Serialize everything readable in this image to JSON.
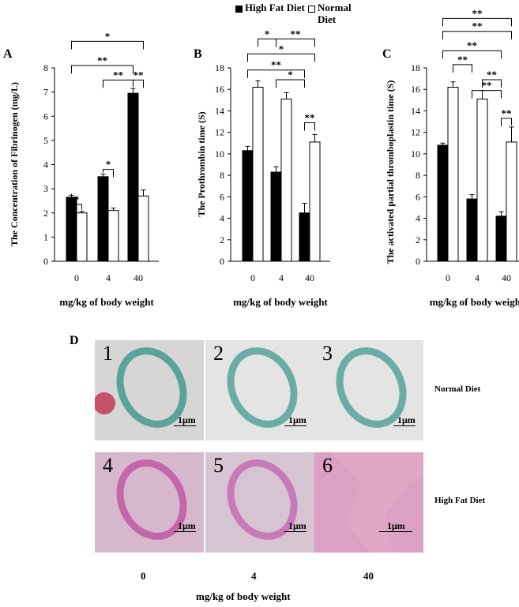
{
  "legend": {
    "high_fat_label": "High Fat Diet",
    "normal_label": "Normal Diet",
    "high_fat_color": "#000000",
    "normal_color": "#ffffff"
  },
  "chart_data": [
    {
      "panel": "A",
      "type": "bar",
      "ylabel": "The Concentration of Fibrinogen (mg/L)",
      "xlabel": "mg/kg of body weight",
      "categories": [
        "0",
        "4",
        "40"
      ],
      "series": [
        {
          "name": "High Fat Diet",
          "values": [
            2.65,
            3.5,
            6.95
          ],
          "errors": [
            0.08,
            0.1,
            0.2
          ]
        },
        {
          "name": "Normal Diet",
          "values": [
            2.0,
            2.1,
            2.7
          ],
          "errors": [
            0.07,
            0.1,
            0.25
          ]
        }
      ],
      "ylim": [
        0,
        8
      ],
      "yticks": [
        "0",
        "1",
        "2",
        "3",
        "4",
        "5",
        "6",
        "7",
        "8"
      ],
      "significance": [
        {
          "label": "*",
          "from": [
            0,
            0
          ],
          "to": [
            0,
            1
          ],
          "level": 2.35
        },
        {
          "label": "*",
          "from": [
            1,
            0
          ],
          "to": [
            1,
            1
          ],
          "level": 3.8
        },
        {
          "label": "**",
          "from": [
            1,
            0
          ],
          "to": [
            2,
            0
          ],
          "level": 7.5
        },
        {
          "label": "**",
          "from": [
            2,
            0
          ],
          "to": [
            2,
            1
          ],
          "level": 7.5
        },
        {
          "label": "**",
          "from": [
            0,
            0
          ],
          "to": [
            2,
            0
          ],
          "level": 8.1
        },
        {
          "label": "*",
          "from": [
            0,
            0
          ],
          "to": [
            2,
            1
          ],
          "level": 9.1
        }
      ]
    },
    {
      "panel": "B",
      "type": "bar",
      "ylabel": "The Prothrombin time (S)",
      "xlabel": "mg/kg of body weight",
      "categories": [
        "0",
        "4",
        "40"
      ],
      "series": [
        {
          "name": "High Fat Diet",
          "values": [
            10.3,
            8.3,
            4.5
          ],
          "errors": [
            0.4,
            0.5,
            0.9
          ]
        },
        {
          "name": "Normal Diet",
          "values": [
            16.2,
            15.1,
            11.1
          ],
          "errors": [
            0.6,
            0.6,
            0.7
          ]
        }
      ],
      "ylim": [
        0,
        18
      ],
      "yticks": [
        "0",
        "2",
        "4",
        "6",
        "8",
        "10",
        "12",
        "14",
        "16",
        "18"
      ],
      "significance": [
        {
          "label": "**",
          "from": [
            2,
            0
          ],
          "to": [
            2,
            1
          ],
          "level": 12.9
        },
        {
          "label": "*",
          "from": [
            1,
            0
          ],
          "to": [
            2,
            0
          ],
          "level": 16.9
        },
        {
          "label": "**",
          "from": [
            0,
            0
          ],
          "to": [
            2,
            0
          ],
          "level": 17.8
        },
        {
          "label": "*",
          "from": [
            0,
            0
          ],
          "to": [
            2,
            1
          ],
          "level": 19.3
        },
        {
          "label": "*",
          "from": [
            0,
            1
          ],
          "to": [
            1,
            0
          ],
          "level": 20.7
        },
        {
          "label": "**",
          "from": [
            1,
            0
          ],
          "to": [
            2,
            1
          ],
          "level": 20.7
        }
      ]
    },
    {
      "panel": "C",
      "type": "bar",
      "ylabel": "The activated partial thromboplastin time (S)",
      "xlabel": "mg/kg of body weight",
      "categories": [
        "0",
        "4",
        "40"
      ],
      "series": [
        {
          "name": "High Fat Diet",
          "values": [
            10.8,
            5.8,
            4.2
          ],
          "errors": [
            0.2,
            0.4,
            0.4
          ]
        },
        {
          "name": "Normal Diet",
          "values": [
            16.2,
            15.1,
            11.1
          ],
          "errors": [
            0.5,
            0.8,
            1.4
          ]
        }
      ],
      "ylim": [
        0,
        18
      ],
      "yticks": [
        "0",
        "2",
        "4",
        "6",
        "8",
        "10",
        "12",
        "14",
        "16",
        "18"
      ],
      "significance": [
        {
          "label": "**",
          "from": [
            2,
            0
          ],
          "to": [
            2,
            1
          ],
          "level": 13.3
        },
        {
          "label": "**",
          "from": [
            1,
            0
          ],
          "to": [
            2,
            0
          ],
          "level": 15.9
        },
        {
          "label": "**",
          "from": [
            1,
            1
          ],
          "to": [
            2,
            0
          ],
          "level": 16.9
        },
        {
          "label": "**",
          "from": [
            0,
            1
          ],
          "to": [
            1,
            0
          ],
          "level": 18.3
        },
        {
          "label": "**",
          "from": [
            0,
            0
          ],
          "to": [
            2,
            0
          ],
          "level": 19.6
        },
        {
          "label": "**",
          "from": [
            0,
            0
          ],
          "to": [
            2,
            1
          ],
          "level": 21.4
        },
        {
          "label": "**",
          "from": [
            0,
            0
          ],
          "to": [
            2,
            1
          ],
          "level": 22.6
        }
      ]
    }
  ],
  "panel_d": {
    "letter": "D",
    "photos": [
      {
        "num": "1",
        "scale": "1μm",
        "stain": "#5aa39a",
        "bg": "#d8d6d4"
      },
      {
        "num": "2",
        "scale": "1μm",
        "stain": "#6aaca6",
        "bg": "#e4e4e2"
      },
      {
        "num": "3",
        "scale": "1μm",
        "stain": "#6aaca6",
        "bg": "#e4e4e2"
      },
      {
        "num": "4",
        "scale": "1μm",
        "stain": "#c466aa",
        "bg": "#d7b7cd"
      },
      {
        "num": "5",
        "scale": "1μm",
        "stain": "#c87ab8",
        "bg": "#d6c4d2"
      },
      {
        "num": "6",
        "scale": "1μm",
        "stain": "#e4a7c6",
        "bg": "#dba0c4"
      }
    ],
    "row_labels": [
      "Normal Diet",
      "High Fat Diet"
    ],
    "doses": [
      "0",
      "4",
      "40"
    ],
    "xlabel": "mg/kg of body weight"
  }
}
